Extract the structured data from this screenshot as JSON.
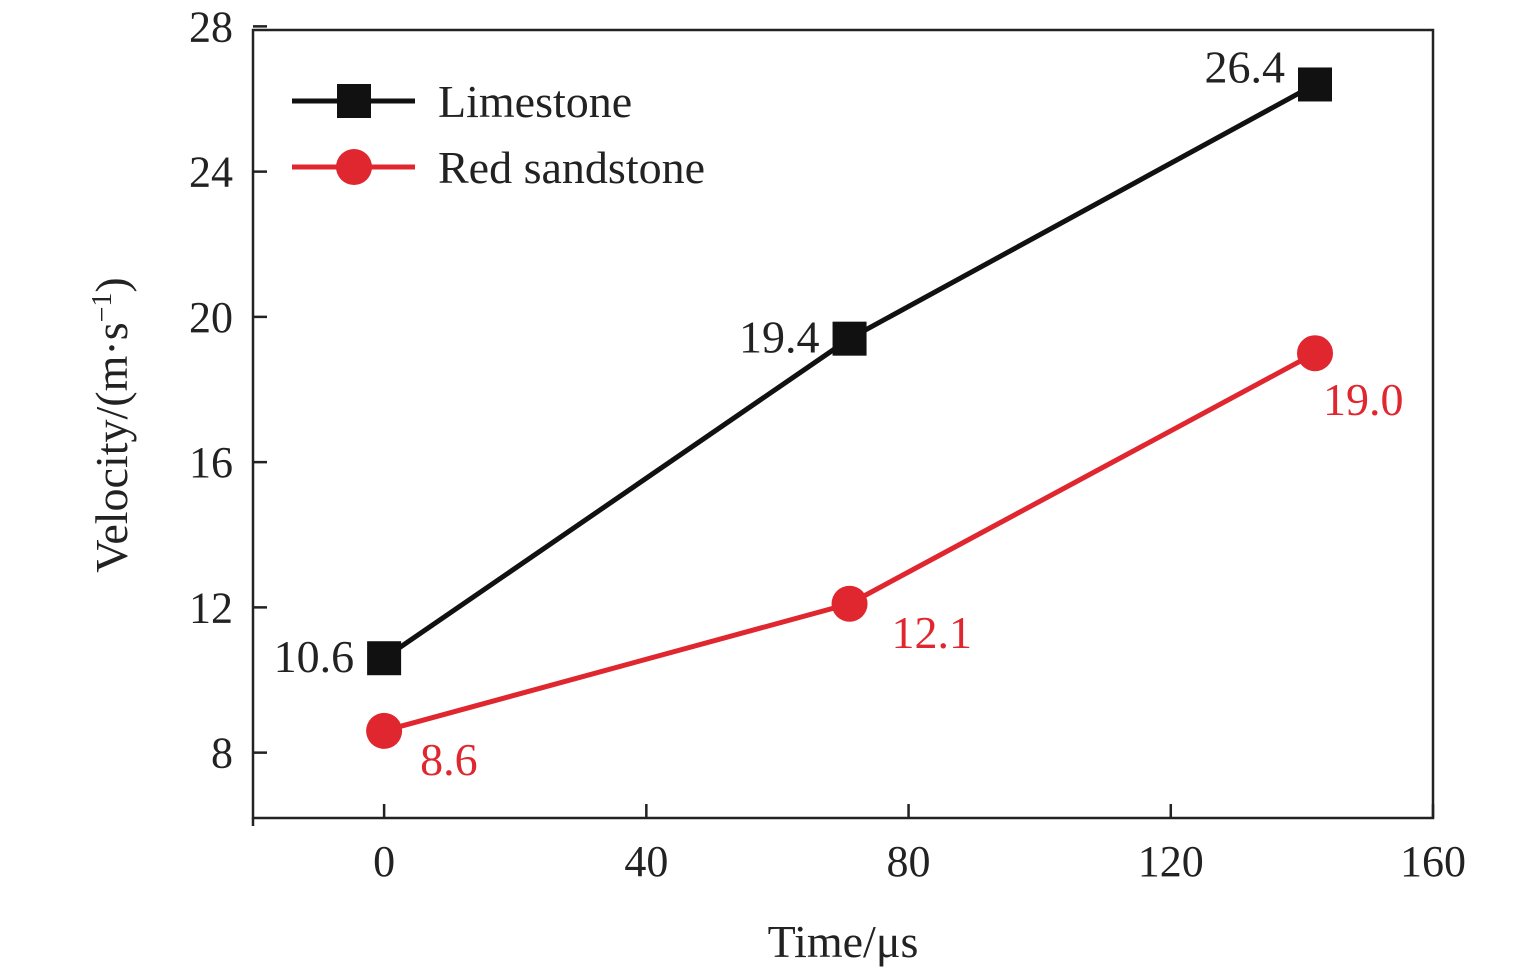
{
  "chart_data": {
    "type": "line",
    "x": [
      0,
      71,
      142
    ],
    "series": [
      {
        "name": "Limestone",
        "values": [
          10.6,
          19.4,
          26.4
        ],
        "color": "#111111",
        "marker": "square",
        "labels": [
          "10.6",
          "19.4",
          "26.4"
        ]
      },
      {
        "name": "Red sandstone",
        "values": [
          8.6,
          12.1,
          19.0
        ],
        "color": "#e0262e",
        "marker": "circle",
        "labels": [
          "8.6",
          "12.1",
          "19.0"
        ]
      }
    ],
    "xlabel": "Time/μs",
    "ylabel": "Velocity/(m·s",
    "ylabel_sup": "−1",
    "ylabel_close": ")",
    "xlim": [
      -20,
      160
    ],
    "ylim": [
      6.2,
      27.9
    ],
    "xticks": [
      0,
      40,
      80,
      120,
      160
    ],
    "yticks": [
      8,
      12,
      16,
      20,
      24,
      28
    ],
    "xtick_labels": [
      "0",
      "40",
      "80",
      "120",
      "160"
    ],
    "ytick_labels": [
      "8",
      "12",
      "16",
      "20",
      "24",
      "28"
    ],
    "legend_position": "top-left",
    "grid": false
  }
}
